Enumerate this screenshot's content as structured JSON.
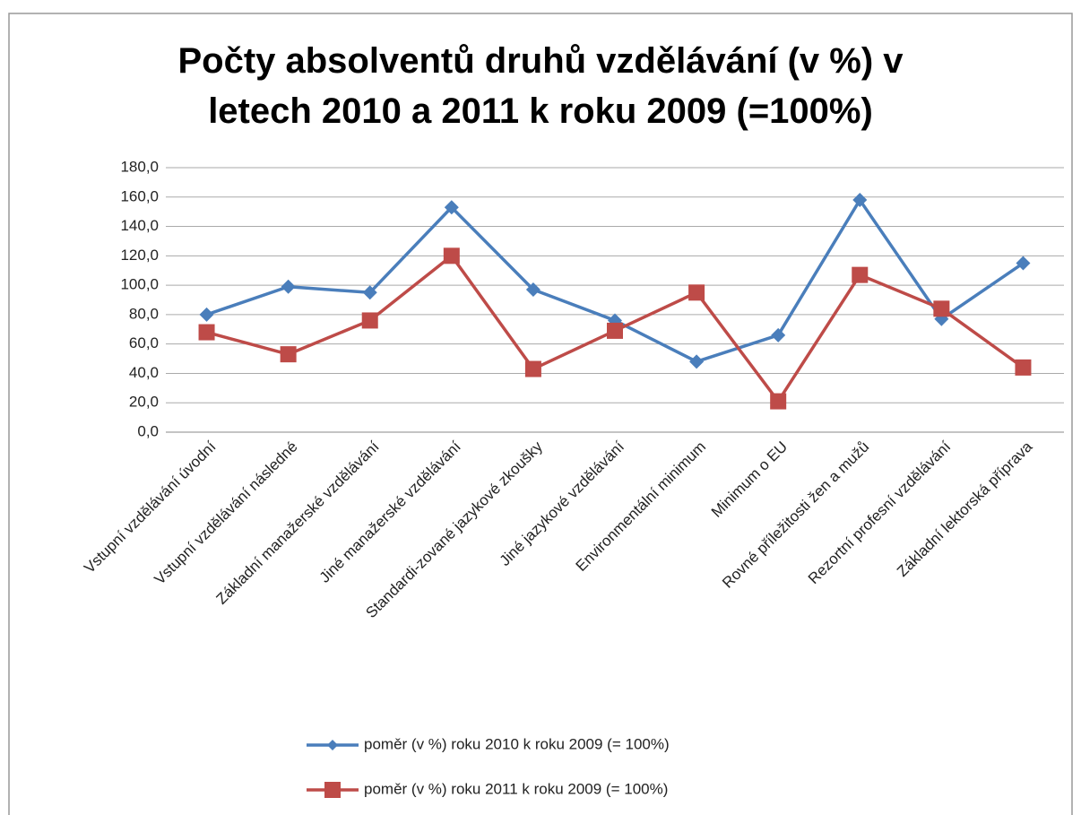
{
  "chart_data": {
    "type": "line",
    "title": "Počty absolventů druhů vzdělávání (v  %) v letech 2010 a 2011 k roku 2009 (=100%)",
    "categories": [
      "Vstupní vzdělávání úvodní",
      "Vstupní vzdělávání následné",
      "Základní manažerské vzdělávání",
      "Jiné manažerské vzdělávání",
      "Standardi-zované jazykové zkoušky",
      "Jiné jazykové vzdělávání",
      "Environmentální minimum",
      "Minimum o EU",
      "Rovné příležitosti žen a mužů",
      "Rezortní profesní vzdělávání",
      "Základní lektorská příprava"
    ],
    "series": [
      {
        "name": "poměr (v %) roku 2010 k roku 2009 (= 100%)",
        "color": "#4a7ebb",
        "marker": "diamond",
        "values": [
          80,
          99,
          95,
          153,
          97,
          76,
          48,
          66,
          158,
          77,
          115
        ]
      },
      {
        "name": "poměr (v %) roku 2011 k roku 2009 (= 100%)",
        "color": "#be4b48",
        "marker": "square",
        "values": [
          68,
          53,
          76,
          120,
          43,
          69,
          95,
          21,
          107,
          84,
          44
        ]
      }
    ],
    "ylim": [
      0,
      180
    ],
    "yticks": [
      {
        "value": 0,
        "label": "0,0"
      },
      {
        "value": 20,
        "label": "20,0"
      },
      {
        "value": 40,
        "label": "40,0"
      },
      {
        "value": 60,
        "label": "60,0"
      },
      {
        "value": 80,
        "label": "80,0"
      },
      {
        "value": 100,
        "label": "100,0"
      },
      {
        "value": 120,
        "label": "120,0"
      },
      {
        "value": 140,
        "label": "140,0"
      },
      {
        "value": 160,
        "label": "160,0"
      },
      {
        "value": 180,
        "label": "180,0"
      }
    ],
    "grid": true,
    "legend": "bottom"
  }
}
